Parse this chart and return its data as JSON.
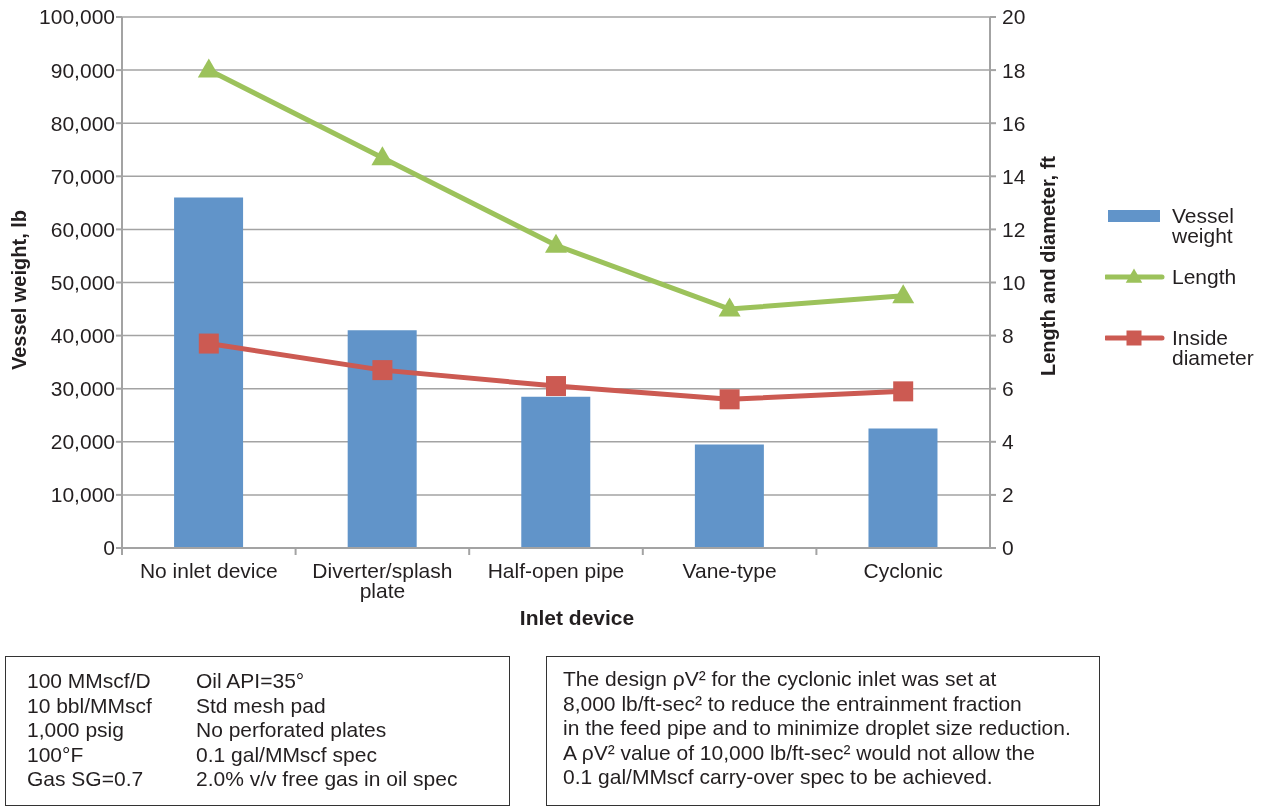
{
  "chart_data": {
    "type": "bar",
    "xlabel": "Inlet device",
    "ylabel": "Vessel weight, lb",
    "y2label": "Length and diameter, ft",
    "categories": [
      "No inlet device",
      "Diverter/splash plate",
      "Half-open pipe",
      "Vane-type",
      "Cyclonic"
    ],
    "series": [
      {
        "name": "Vessel weight",
        "color": "#6194c9",
        "values": [
          66000,
          41000,
          28500,
          19500,
          22500
        ]
      },
      {
        "name": "Length",
        "type": "line",
        "axis": "y2",
        "color": "#9cc25b",
        "marker": "triangle",
        "values": [
          18,
          14.7,
          11.4,
          9,
          9.5
        ]
      },
      {
        "name": "Inside diameter",
        "type": "line",
        "axis": "y2",
        "color": "#cc5a52",
        "marker": "square",
        "values": [
          7.7,
          6.7,
          6.1,
          5.6,
          5.9
        ]
      }
    ],
    "ylim": [
      0,
      100000
    ],
    "yticks": [
      0,
      {
        "value": 10000,
        "label": "10,000"
      },
      {
        "value": 20000,
        "label": "20,000"
      },
      {
        "value": 30000,
        "label": "30,000"
      },
      {
        "value": 40000,
        "label": "40,000"
      },
      {
        "value": 50000,
        "label": "50,000"
      },
      {
        "value": 60000,
        "label": "60,000"
      },
      {
        "value": 70000,
        "label": "70,000"
      },
      {
        "value": 80000,
        "label": "80,000"
      },
      {
        "value": 90000,
        "label": "90,000"
      },
      {
        "value": 100000,
        "label": "100,000"
      }
    ],
    "y2lim": [
      0,
      20
    ],
    "y2ticks": [
      0,
      2,
      4,
      6,
      8,
      10,
      12,
      14,
      16,
      18,
      20
    ],
    "grid": "y",
    "legend": "right",
    "line_style": "solid",
    "annotations": [
      "100 MMscf/D\n10 bbl/MMscf\n1,000 psig\n100°F\nGas SG=0.7",
      "Oil API=35°\nStd mesh pad\nNo perforated plates\n0.1 gal/MMscf spec\n2.0% v/v free gas in oil spec",
      "The design ρV² for the cyclonic inlet was set at\n8,000 lb/ft-sec² to reduce the entrainment fraction\nin the feed pipe and to minimize droplet size reduction.\nA ρV² value of 10,000 lb/ft-sec² would not allow the\n0.1 gal/MMscf carry-over spec to be achieved."
    ]
  }
}
